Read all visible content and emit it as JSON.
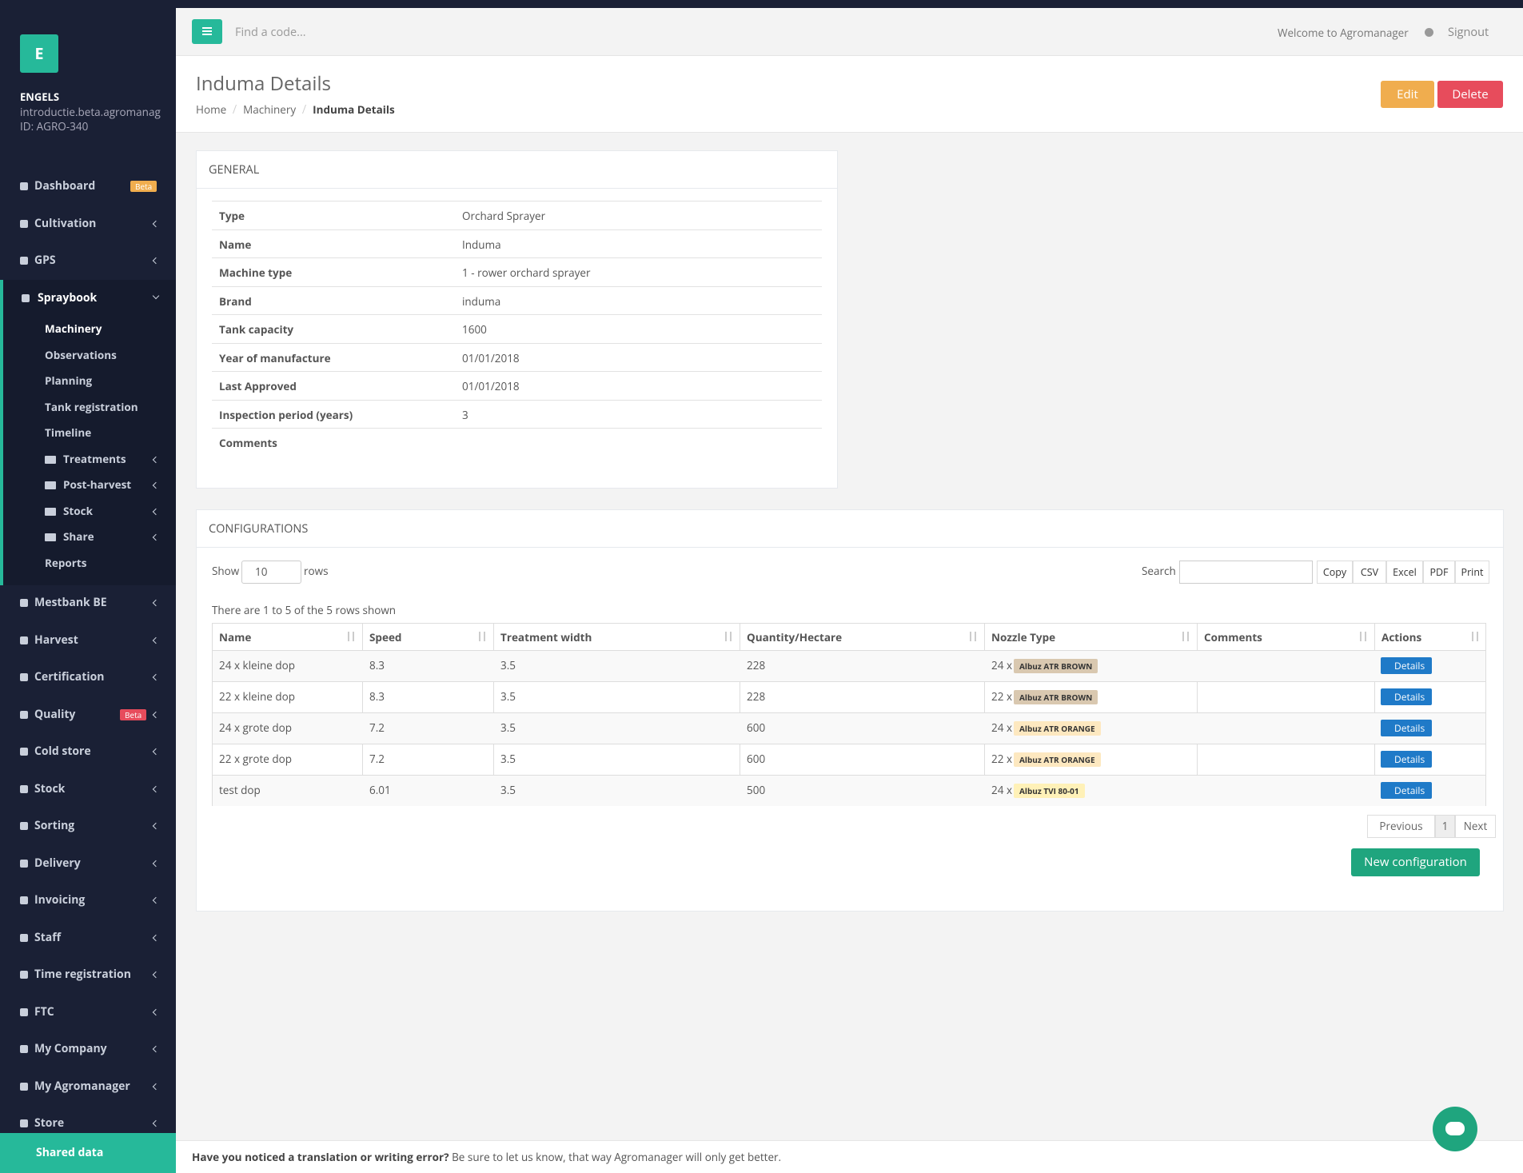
{
  "sidebar": {
    "logo": "E",
    "company": "ENGELS",
    "domain": "introductie.beta.agromanag",
    "id": "ID: AGRO-340",
    "menu_top": [
      {
        "label": "Dashboard",
        "badge": "Beta"
      },
      {
        "label": "Cultivation"
      },
      {
        "label": "GPS"
      },
      {
        "label": "Spraybook"
      }
    ],
    "submenu": [
      {
        "label": "Machinery"
      },
      {
        "label": "Observations"
      },
      {
        "label": "Planning"
      },
      {
        "label": "Tank registration"
      },
      {
        "label": "Timeline"
      },
      {
        "label": "Treatments",
        "folder": true
      },
      {
        "label": "Post-harvest",
        "folder": true
      },
      {
        "label": "Stock",
        "folder": true
      },
      {
        "label": "Share",
        "folder": true
      },
      {
        "label": "Reports"
      }
    ],
    "menu_bottom": [
      {
        "label": "Mestbank BE"
      },
      {
        "label": "Harvest"
      },
      {
        "label": "Certification"
      },
      {
        "label": "Quality",
        "badge": "Beta"
      },
      {
        "label": "Cold store"
      },
      {
        "label": "Stock"
      },
      {
        "label": "Sorting"
      },
      {
        "label": "Delivery"
      },
      {
        "label": "Invoicing"
      },
      {
        "label": "Staff"
      },
      {
        "label": "Time registration"
      },
      {
        "label": "FTC"
      },
      {
        "label": "My Company"
      },
      {
        "label": "My Agromanager"
      },
      {
        "label": "Store"
      }
    ],
    "shared": "Shared data"
  },
  "topbar": {
    "search_placeholder": "Find a code...",
    "welcome": "Welcome to Agromanager",
    "signout": "Signout"
  },
  "page": {
    "title": "Induma Details",
    "breadcrumb": [
      "Home",
      "Machinery",
      "Induma Details"
    ],
    "edit": "Edit",
    "delete": "Delete"
  },
  "general": {
    "title": "GENERAL",
    "rows": [
      [
        "Type",
        "Orchard Sprayer"
      ],
      [
        "Name",
        "Induma"
      ],
      [
        "Machine type",
        "1 - rower orchard sprayer"
      ],
      [
        "Brand",
        "induma"
      ],
      [
        "Tank capacity",
        1600
      ],
      [
        "Year of manufacture",
        "01/01/2018"
      ],
      [
        "Last Approved",
        "01/01/2018"
      ],
      [
        "Inspection period (years)",
        3
      ],
      [
        "Comments"
      ]
    ]
  },
  "configurations": {
    "title": "CONFIGURATIONS",
    "show": "Show",
    "page_size": "10",
    "rows_label": "rows",
    "search": "Search",
    "buttons": [
      "Copy",
      "CSV",
      "Excel",
      "PDF",
      "Print"
    ],
    "info": "There are 1 to 5 of the 5 rows shown",
    "columns": [
      "Name",
      "Speed",
      "Treatment width",
      "Quantity/Hectare",
      "Nozzle Type",
      "Comments",
      "Actions"
    ],
    "rows": [
      {
        "name": "24 x kleine dop",
        "speed": 8.3,
        "width": 3.5,
        "quantity": 228,
        "count": "24 x",
        "nozzle": "Albuz ATR BROWN",
        "tag_color": "#d9c8b0",
        "action": "Details"
      },
      {
        "name": "22 x kleine dop",
        "speed": 8.3,
        "width": 3.5,
        "quantity": 228,
        "count": "22 x",
        "nozzle": "Albuz ATR BROWN",
        "tag_color": "#d9c8b0",
        "action": "Details"
      },
      {
        "name": "24 x grote dop",
        "speed": 7.2,
        "width": 3.5,
        "quantity": 600,
        "count": "24 x",
        "nozzle": "Albuz ATR ORANGE",
        "tag_color": "#fde8c0",
        "action": "Details"
      },
      {
        "name": "22 x grote dop",
        "speed": 7.2,
        "width": 3.5,
        "quantity": 600,
        "count": "22 x",
        "nozzle": "Albuz ATR ORANGE",
        "tag_color": "#fde8c0",
        "action": "Details"
      },
      {
        "name": "test dop",
        "speed": 6.01,
        "width": 3.5,
        "quantity": 500,
        "count": "24 x",
        "nozzle": "Albuz TVI 80-01",
        "tag_color": "#fff1b8",
        "action": "Details"
      }
    ],
    "pagination": [
      "Previous",
      "1",
      "Next"
    ],
    "new_button": "New configuration"
  },
  "footer": {
    "bold": "Have you noticed a translation or writing error?",
    "text": " Be sure to let us know, that way Agromanager will only get better."
  }
}
